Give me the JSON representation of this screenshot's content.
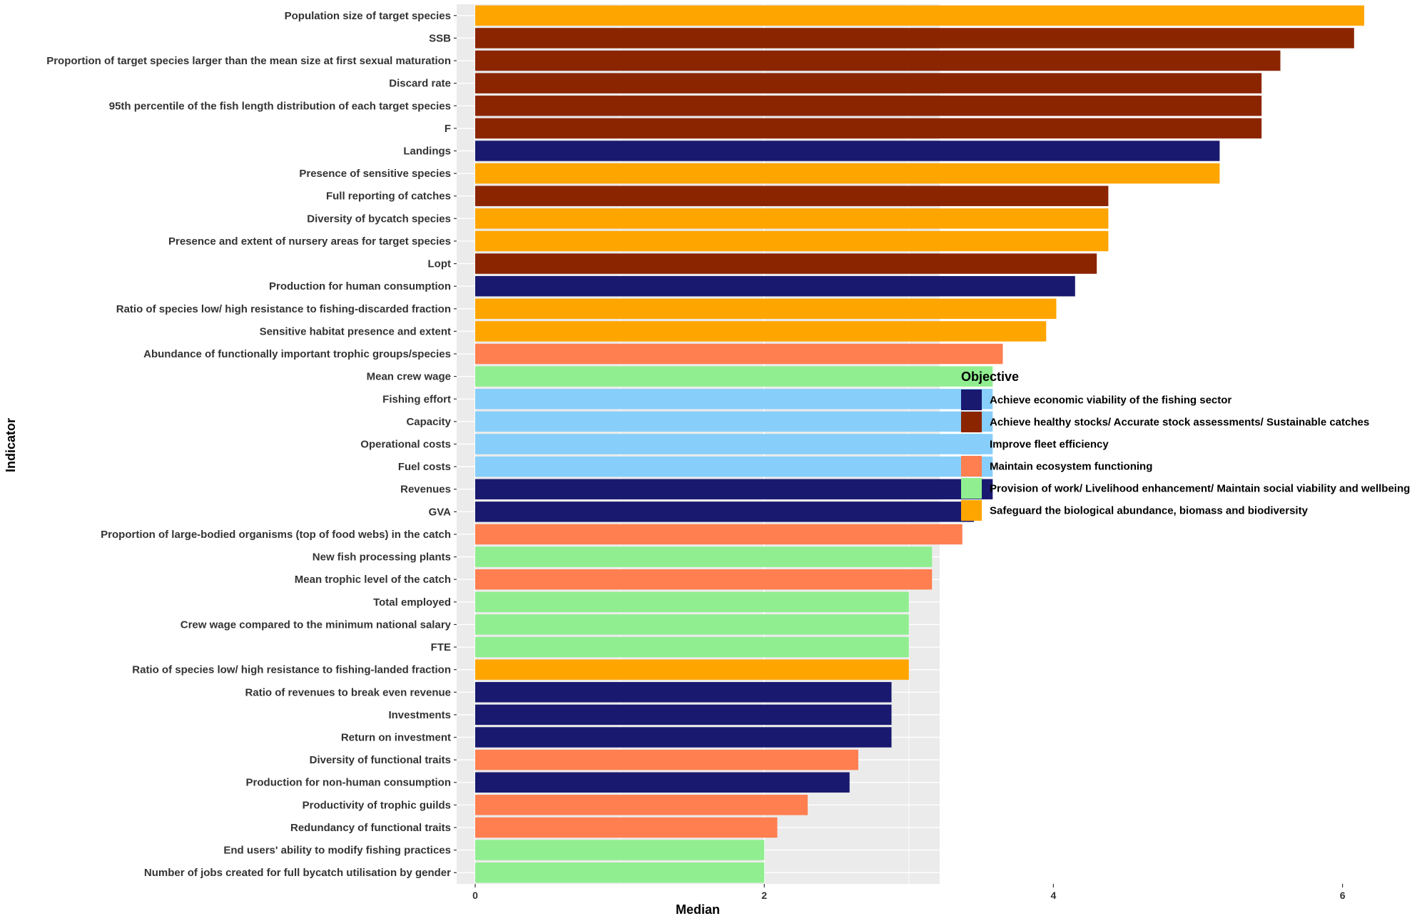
{
  "chart_data": {
    "type": "bar",
    "orientation": "horizontal",
    "xlabel": "Median",
    "ylabel": "Indicator",
    "xlim": [
      0,
      6.45
    ],
    "xticks": [
      0,
      2,
      4,
      6
    ],
    "legend_title": "Objective",
    "legend_position": "right",
    "objectives": [
      {
        "key": "econ",
        "label": "Achieve economic viability of the fishing sector",
        "color": "#191970"
      },
      {
        "key": "stocks",
        "label": "Achieve healthy stocks/ Accurate stock assessments/ Sustainable catches",
        "color": "#8B2500"
      },
      {
        "key": "fleet",
        "label": "Improve fleet efficiency",
        "color": "#87CEFA"
      },
      {
        "key": "eco",
        "label": "Maintain ecosystem functioning",
        "color": "#FF7F50"
      },
      {
        "key": "work",
        "label": "Provision of work/ Livelihood enhancement/ Maintain social viability and wellbeing",
        "color": "#90EE90"
      },
      {
        "key": "bio",
        "label": "Safeguard the biological abundance, biomass and biodiversity",
        "color": "#FFA500"
      }
    ],
    "bars": [
      {
        "label": "Population size of target species",
        "value": 6.15,
        "objective": "bio"
      },
      {
        "label": "SSB",
        "value": 6.08,
        "objective": "stocks"
      },
      {
        "label": "Proportion of target species  larger than the mean size at first sexual maturation",
        "value": 5.57,
        "objective": "stocks"
      },
      {
        "label": "Discard rate",
        "value": 5.44,
        "objective": "stocks"
      },
      {
        "label": "95th percentile of the fish length distribution of each target species",
        "value": 5.44,
        "objective": "stocks"
      },
      {
        "label": "F",
        "value": 5.44,
        "objective": "stocks"
      },
      {
        "label": "Landings",
        "value": 5.15,
        "objective": "econ"
      },
      {
        "label": "Presence of sensitive species",
        "value": 5.15,
        "objective": "bio"
      },
      {
        "label": "Full reporting of catches",
        "value": 4.38,
        "objective": "stocks"
      },
      {
        "label": "Diversity of bycatch species",
        "value": 4.38,
        "objective": "bio"
      },
      {
        "label": "Presence and extent of nursery areas for target species",
        "value": 4.38,
        "objective": "bio"
      },
      {
        "label": "Lopt",
        "value": 4.3,
        "objective": "stocks"
      },
      {
        "label": "Production for human consumption",
        "value": 4.15,
        "objective": "econ"
      },
      {
        "label": "Ratio of species low/ high resistance to fishing-discarded fraction",
        "value": 4.02,
        "objective": "bio"
      },
      {
        "label": "Sensitive habitat presence and extent",
        "value": 3.95,
        "objective": "bio"
      },
      {
        "label": "Abundance of functionally important trophic groups/species",
        "value": 3.65,
        "objective": "eco"
      },
      {
        "label": "Mean crew wage",
        "value": 3.58,
        "objective": "work"
      },
      {
        "label": "Fishing effort",
        "value": 3.58,
        "objective": "fleet"
      },
      {
        "label": "Capacity",
        "value": 3.58,
        "objective": "fleet"
      },
      {
        "label": "Operational costs",
        "value": 3.58,
        "objective": "fleet"
      },
      {
        "label": "Fuel costs",
        "value": 3.58,
        "objective": "fleet"
      },
      {
        "label": "Revenues",
        "value": 3.58,
        "objective": "econ"
      },
      {
        "label": "GVA",
        "value": 3.45,
        "objective": "econ"
      },
      {
        "label": "Proportion of large-bodied organisms (top of food webs) in the catch",
        "value": 3.37,
        "objective": "eco"
      },
      {
        "label": "New fish processing plants",
        "value": 3.16,
        "objective": "work"
      },
      {
        "label": "Mean trophic level of the catch",
        "value": 3.16,
        "objective": "eco"
      },
      {
        "label": "Total employed",
        "value": 3.0,
        "objective": "work"
      },
      {
        "label": "Crew wage compared to the minimum national salary",
        "value": 3.0,
        "objective": "work"
      },
      {
        "label": "FTE",
        "value": 3.0,
        "objective": "work"
      },
      {
        "label": "Ratio of species low/ high resistance to fishing-landed fraction",
        "value": 3.0,
        "objective": "bio"
      },
      {
        "label": "Ratio of revenues to break even revenue",
        "value": 2.88,
        "objective": "econ"
      },
      {
        "label": "Investments",
        "value": 2.88,
        "objective": "econ"
      },
      {
        "label": "Return on investment",
        "value": 2.88,
        "objective": "econ"
      },
      {
        "label": "Diversity of functional traits",
        "value": 2.65,
        "objective": "eco"
      },
      {
        "label": "Production for non-human consumption",
        "value": 2.59,
        "objective": "econ"
      },
      {
        "label": "Productivity of trophic guilds",
        "value": 2.3,
        "objective": "eco"
      },
      {
        "label": "Redundancy of functional traits",
        "value": 2.09,
        "objective": "eco"
      },
      {
        "label": "End users' ability to modify fishing practices",
        "value": 2.0,
        "objective": "work"
      },
      {
        "label": "Number of jobs created for full bycatch utilisation by gender",
        "value": 2.0,
        "objective": "work"
      }
    ]
  }
}
